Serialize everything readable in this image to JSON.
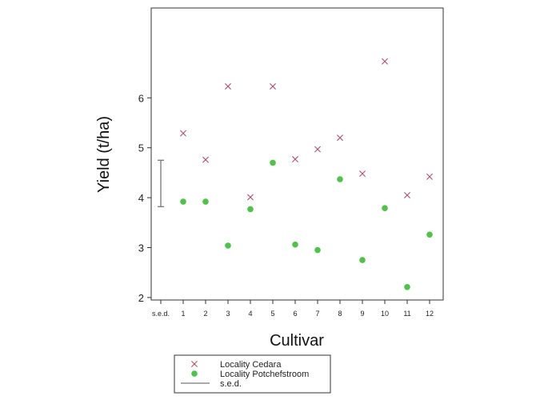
{
  "chart_data": {
    "type": "scatter",
    "xlabel": "Cultivar",
    "ylabel": "Yield (t/ha)",
    "categories": [
      "s.e.d.",
      "1",
      "2",
      "3",
      "4",
      "5",
      "6",
      "7",
      "8",
      "9",
      "10",
      "11",
      "12"
    ],
    "ylim": [
      1.95,
      7.8
    ],
    "yticks": [
      2,
      3,
      4,
      5,
      6
    ],
    "grid": false,
    "legend_position": "bottom",
    "series": [
      {
        "name": "Locality Cedara",
        "marker": "x",
        "color": "#b0506b",
        "x": [
          "1",
          "2",
          "3",
          "4",
          "5",
          "6",
          "7",
          "8",
          "9",
          "10",
          "11",
          "12"
        ],
        "y": [
          5.29,
          4.76,
          6.23,
          4.01,
          6.23,
          4.77,
          4.97,
          5.2,
          4.48,
          6.73,
          4.05,
          4.42
        ]
      },
      {
        "name": "Locality Potchefstroom",
        "marker": "circle",
        "color": "#4fc24a",
        "x": [
          "1",
          "2",
          "3",
          "4",
          "5",
          "6",
          "7",
          "8",
          "9",
          "10",
          "11",
          "12"
        ],
        "y": [
          3.92,
          3.92,
          3.04,
          3.77,
          4.7,
          3.06,
          2.95,
          4.37,
          2.75,
          3.79,
          2.21,
          3.26
        ]
      }
    ],
    "sed": {
      "name": "s.e.d.",
      "x": "s.e.d.",
      "y_low": 3.82,
      "y_high": 4.75,
      "color": "#777777"
    }
  }
}
